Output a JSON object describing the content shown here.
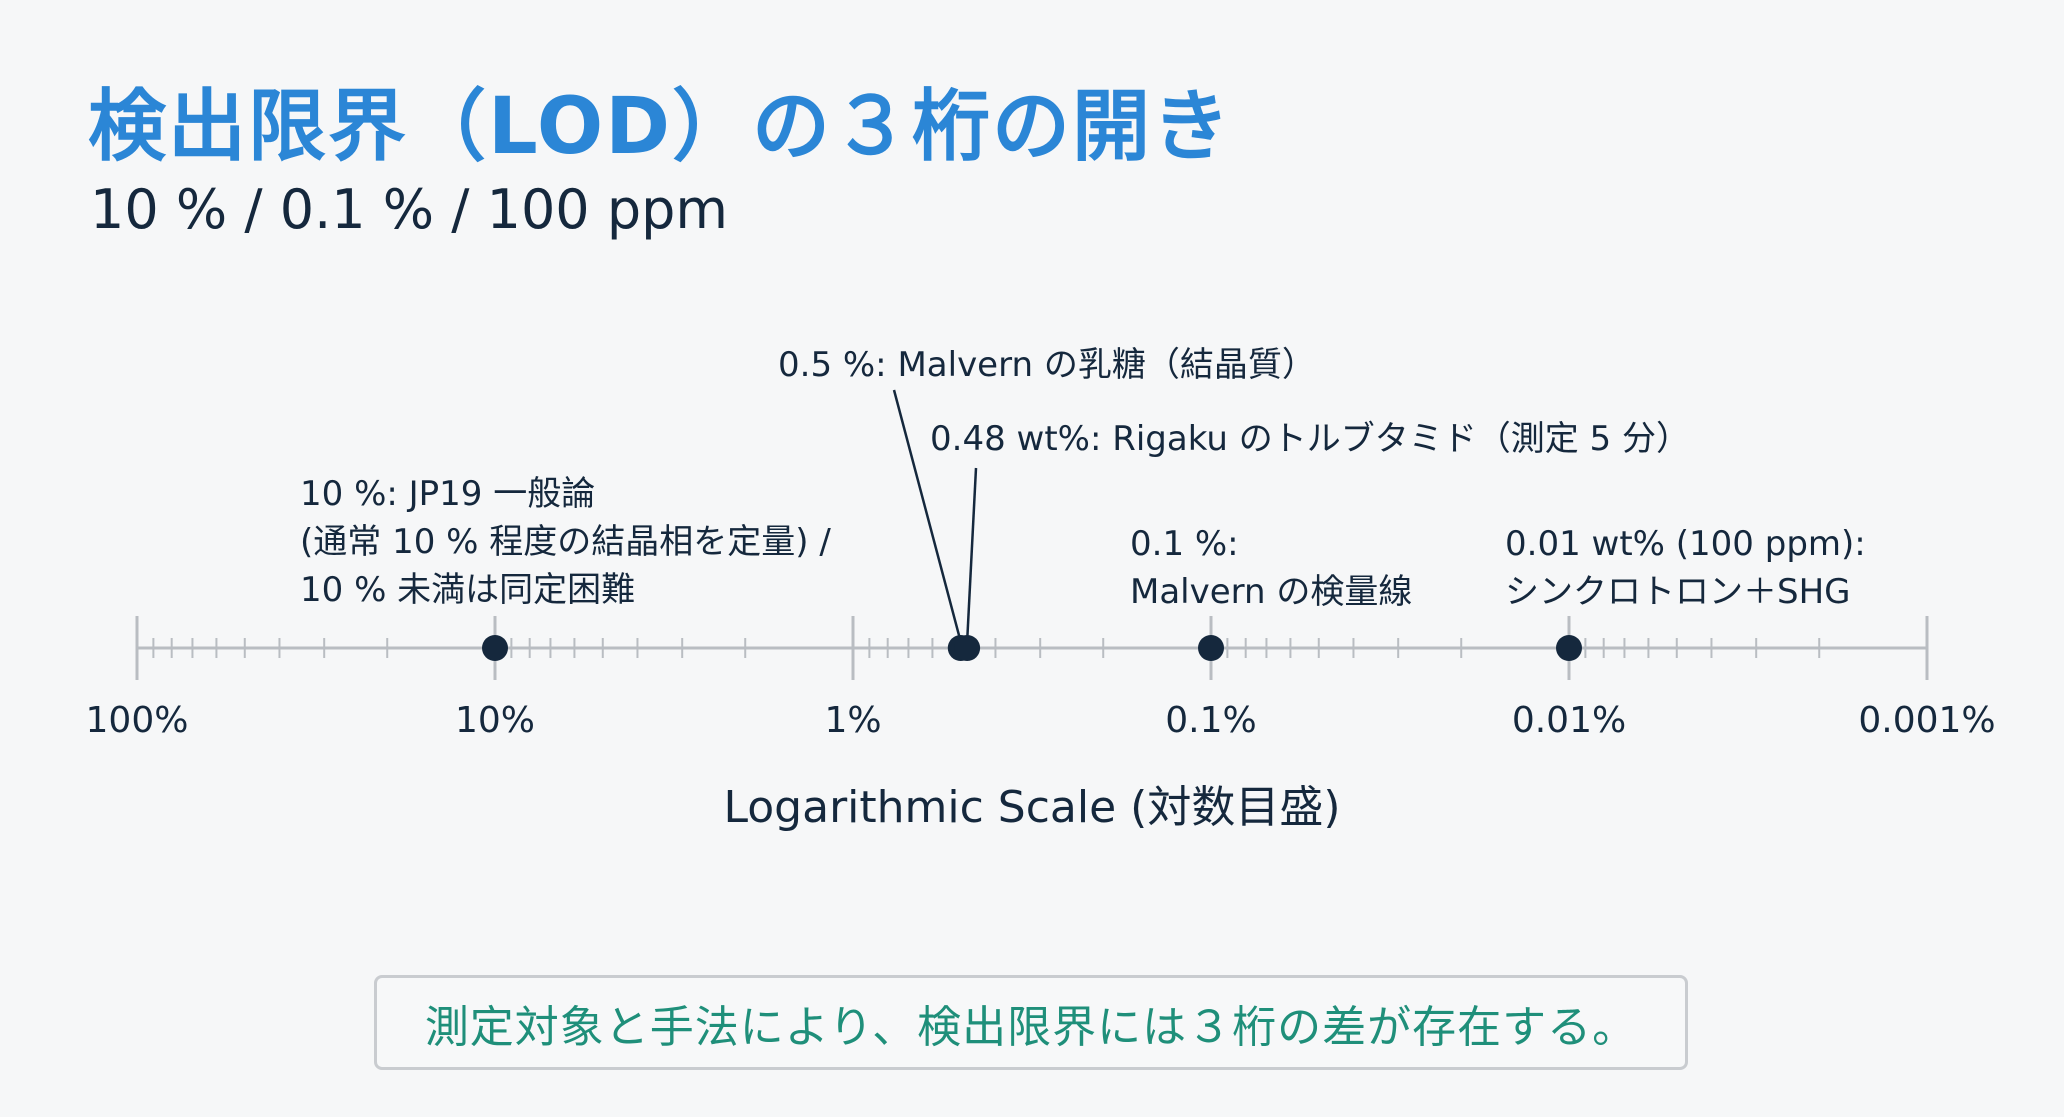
{
  "header": {
    "title": "検出限界（LOD）の３桁の開き",
    "subtitle": "10 % / 0.1 % / 100 ppm"
  },
  "colors": {
    "title": "#2b86d6",
    "text": "#15283d",
    "point": "#15283d",
    "axis": "#b9bdc2",
    "callout_text": "#1f8f7a",
    "callout_border": "#c9ccd0"
  },
  "chart_data": {
    "type": "scatter",
    "scale": "log",
    "direction": "descending",
    "xlim": [
      100,
      0.001
    ],
    "xlabel": "Logarithmic Scale (対数目盛)",
    "tick_labels": [
      {
        "value": 100,
        "label": "100%"
      },
      {
        "value": 10,
        "label": "10%"
      },
      {
        "value": 1,
        "label": "1%"
      },
      {
        "value": 0.1,
        "label": "0.1%"
      },
      {
        "value": 0.01,
        "label": "0.01%"
      },
      {
        "value": 0.001,
        "label": "0.001%"
      }
    ],
    "points": [
      {
        "value": 10,
        "lines": [
          "10 %: JP19 一般論",
          "(通常 10 % 程度の結晶相を定量) /",
          "10 % 未満は同定困難"
        ]
      },
      {
        "value": 0.5,
        "lines": [
          "0.5 %: Malvern の乳糖（結晶質）"
        ]
      },
      {
        "value": 0.48,
        "lines": [
          "0.48 wt%: Rigaku のトルブタミド（測定 5 分）"
        ]
      },
      {
        "value": 0.1,
        "lines": [
          "0.1 %:",
          "Malvern の検量線"
        ]
      },
      {
        "value": 0.01,
        "lines": [
          "0.01 wt% (100 ppm):",
          "シンクロトロン＋SHG"
        ]
      }
    ]
  },
  "callout": {
    "text": "測定対象と手法により、検出限界には３桁の差が存在する。"
  }
}
